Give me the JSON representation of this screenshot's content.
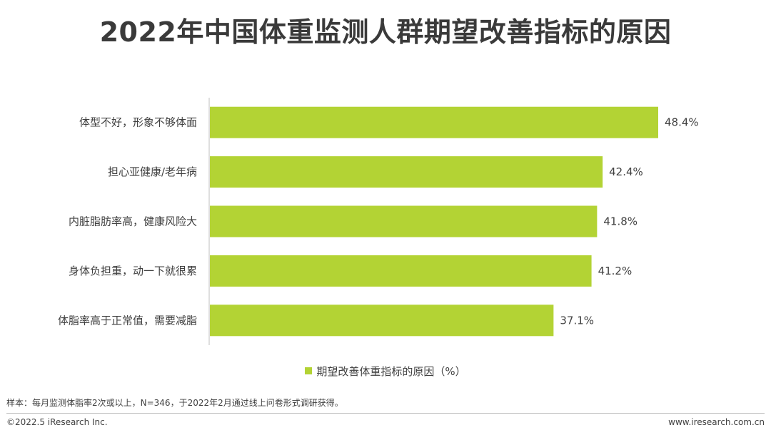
{
  "title": "2022年中国体重监测人群期望改善指标的原因",
  "colors": {
    "bar": "#b3d334",
    "axis": "#bfbfbf"
  },
  "chart_data": {
    "type": "bar",
    "orientation": "horizontal",
    "categories": [
      "体型不好，形象不够体面",
      "担心亚健康/老年病",
      "内脏脂肪率高，健康风险大",
      "身体负担重，动一下就很累",
      "体脂率高于正常值，需要减脂"
    ],
    "series": [
      {
        "name": "期望改善体重指标的原因（%）",
        "values": [
          48.4,
          42.4,
          41.8,
          41.2,
          37.1
        ]
      }
    ],
    "value_suffix": "%",
    "xlim": [
      0,
      48.4
    ],
    "grid": false,
    "legend": "bottom-center"
  },
  "footer": {
    "note": "样本：每月监测体脂率2次或以上，N=346，于2022年2月通过线上问卷形式调研获得。",
    "copyright": "©2022.5 iResearch Inc.",
    "site": "www.iresearch.com.cn"
  }
}
